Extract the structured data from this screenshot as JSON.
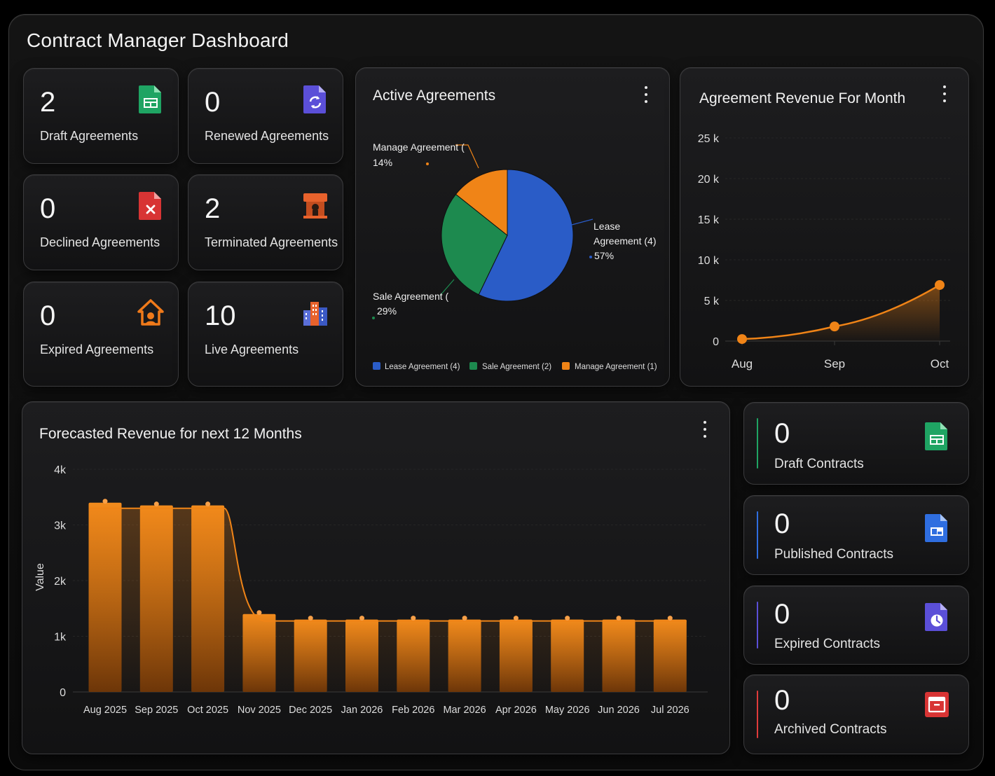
{
  "page": {
    "title": "Contract Manager Dashboard"
  },
  "stats": {
    "draft_agreements": {
      "count": "2",
      "label": "Draft Agreements",
      "icon": "spreadsheet-icon",
      "color": "#1fa463"
    },
    "renewed_agreements": {
      "count": "0",
      "label": "Renewed Agreements",
      "icon": "renew-document-icon",
      "color": "#5b4fd8"
    },
    "declined_agreements": {
      "count": "0",
      "label": "Declined Agreements",
      "icon": "declined-document-icon",
      "color": "#e03b3b"
    },
    "terminated_agreements": {
      "count": "2",
      "label": "Terminated Agreements",
      "icon": "terminated-icon",
      "color": "#e8622c"
    },
    "expired_agreements": {
      "count": "0",
      "label": "Expired Agreements",
      "icon": "house-icon",
      "color": "#f07a1a"
    },
    "live_agreements": {
      "count": "10",
      "label": "Live Agreements",
      "icon": "buildings-icon",
      "color": "#e8702c"
    }
  },
  "active_agreements": {
    "title": "Active Agreements",
    "labels": {
      "manage": {
        "name": "Manage Agreement (",
        "pct": "14%"
      },
      "lease": {
        "name_line1": "Lease",
        "name_line2": "Agreement (4)",
        "pct": "57%"
      },
      "sale": {
        "name": "Sale Agreement (",
        "pct": "29%"
      }
    },
    "legend": [
      "Lease Agreement (4)",
      "Sale Agreement (2)",
      "Manage Agreement (1)"
    ]
  },
  "revenue_month": {
    "title": "Agreement Revenue For Month"
  },
  "forecast": {
    "title": "Forecasted Revenue for next 12 Months"
  },
  "contracts": {
    "draft": {
      "count": "0",
      "label": "Draft Contracts",
      "icon": "spreadsheet-icon",
      "color": "#1fa463"
    },
    "published": {
      "count": "0",
      "label": "Published Contracts",
      "icon": "published-document-icon",
      "color": "#2f6ee0"
    },
    "expired": {
      "count": "0",
      "label": "Expired Contracts",
      "icon": "clock-document-icon",
      "color": "#5b4fd8"
    },
    "archived": {
      "count": "0",
      "label": "Archived Contracts",
      "icon": "archive-icon",
      "color": "#e03b3b"
    }
  },
  "chart_data": [
    {
      "type": "pie",
      "title": "Active Agreements",
      "categories": [
        "Lease Agreement (4)",
        "Sale Agreement (2)",
        "Manage Agreement (1)"
      ],
      "values": [
        4,
        2,
        1
      ],
      "percent_labels": [
        "57%",
        "29%",
        "14%"
      ],
      "colors": [
        "#2a5cc7",
        "#1d8a4f",
        "#f08417"
      ],
      "legend": "bottom"
    },
    {
      "type": "area",
      "title": "Agreement Revenue For Month",
      "categories": [
        "Aug",
        "Sep",
        "Oct"
      ],
      "values": [
        250,
        1800,
        6900
      ],
      "ylim": [
        0,
        25000
      ],
      "yticks": [
        "0",
        "5 k",
        "10 k",
        "15 k",
        "20 k",
        "25 k"
      ],
      "grid": true,
      "color": "#f08417"
    },
    {
      "type": "bar",
      "title": "Forecasted Revenue for next 12 Months",
      "ylabel": "Value",
      "categories": [
        "Aug 2025",
        "Sep 2025",
        "Oct 2025",
        "Nov 2025",
        "Dec 2025",
        "Jan 2026",
        "Feb 2026",
        "Mar 2026",
        "Apr 2026",
        "May 2026",
        "Jun 2026",
        "Jul 2026"
      ],
      "values": [
        3400,
        3350,
        3350,
        1400,
        1300,
        1300,
        1300,
        1300,
        1300,
        1300,
        1300,
        1300
      ],
      "ylim": [
        0,
        4000
      ],
      "yticks": [
        "0",
        "1k",
        "2k",
        "3k",
        "4k"
      ],
      "grid": true,
      "color": "#f08417"
    }
  ]
}
